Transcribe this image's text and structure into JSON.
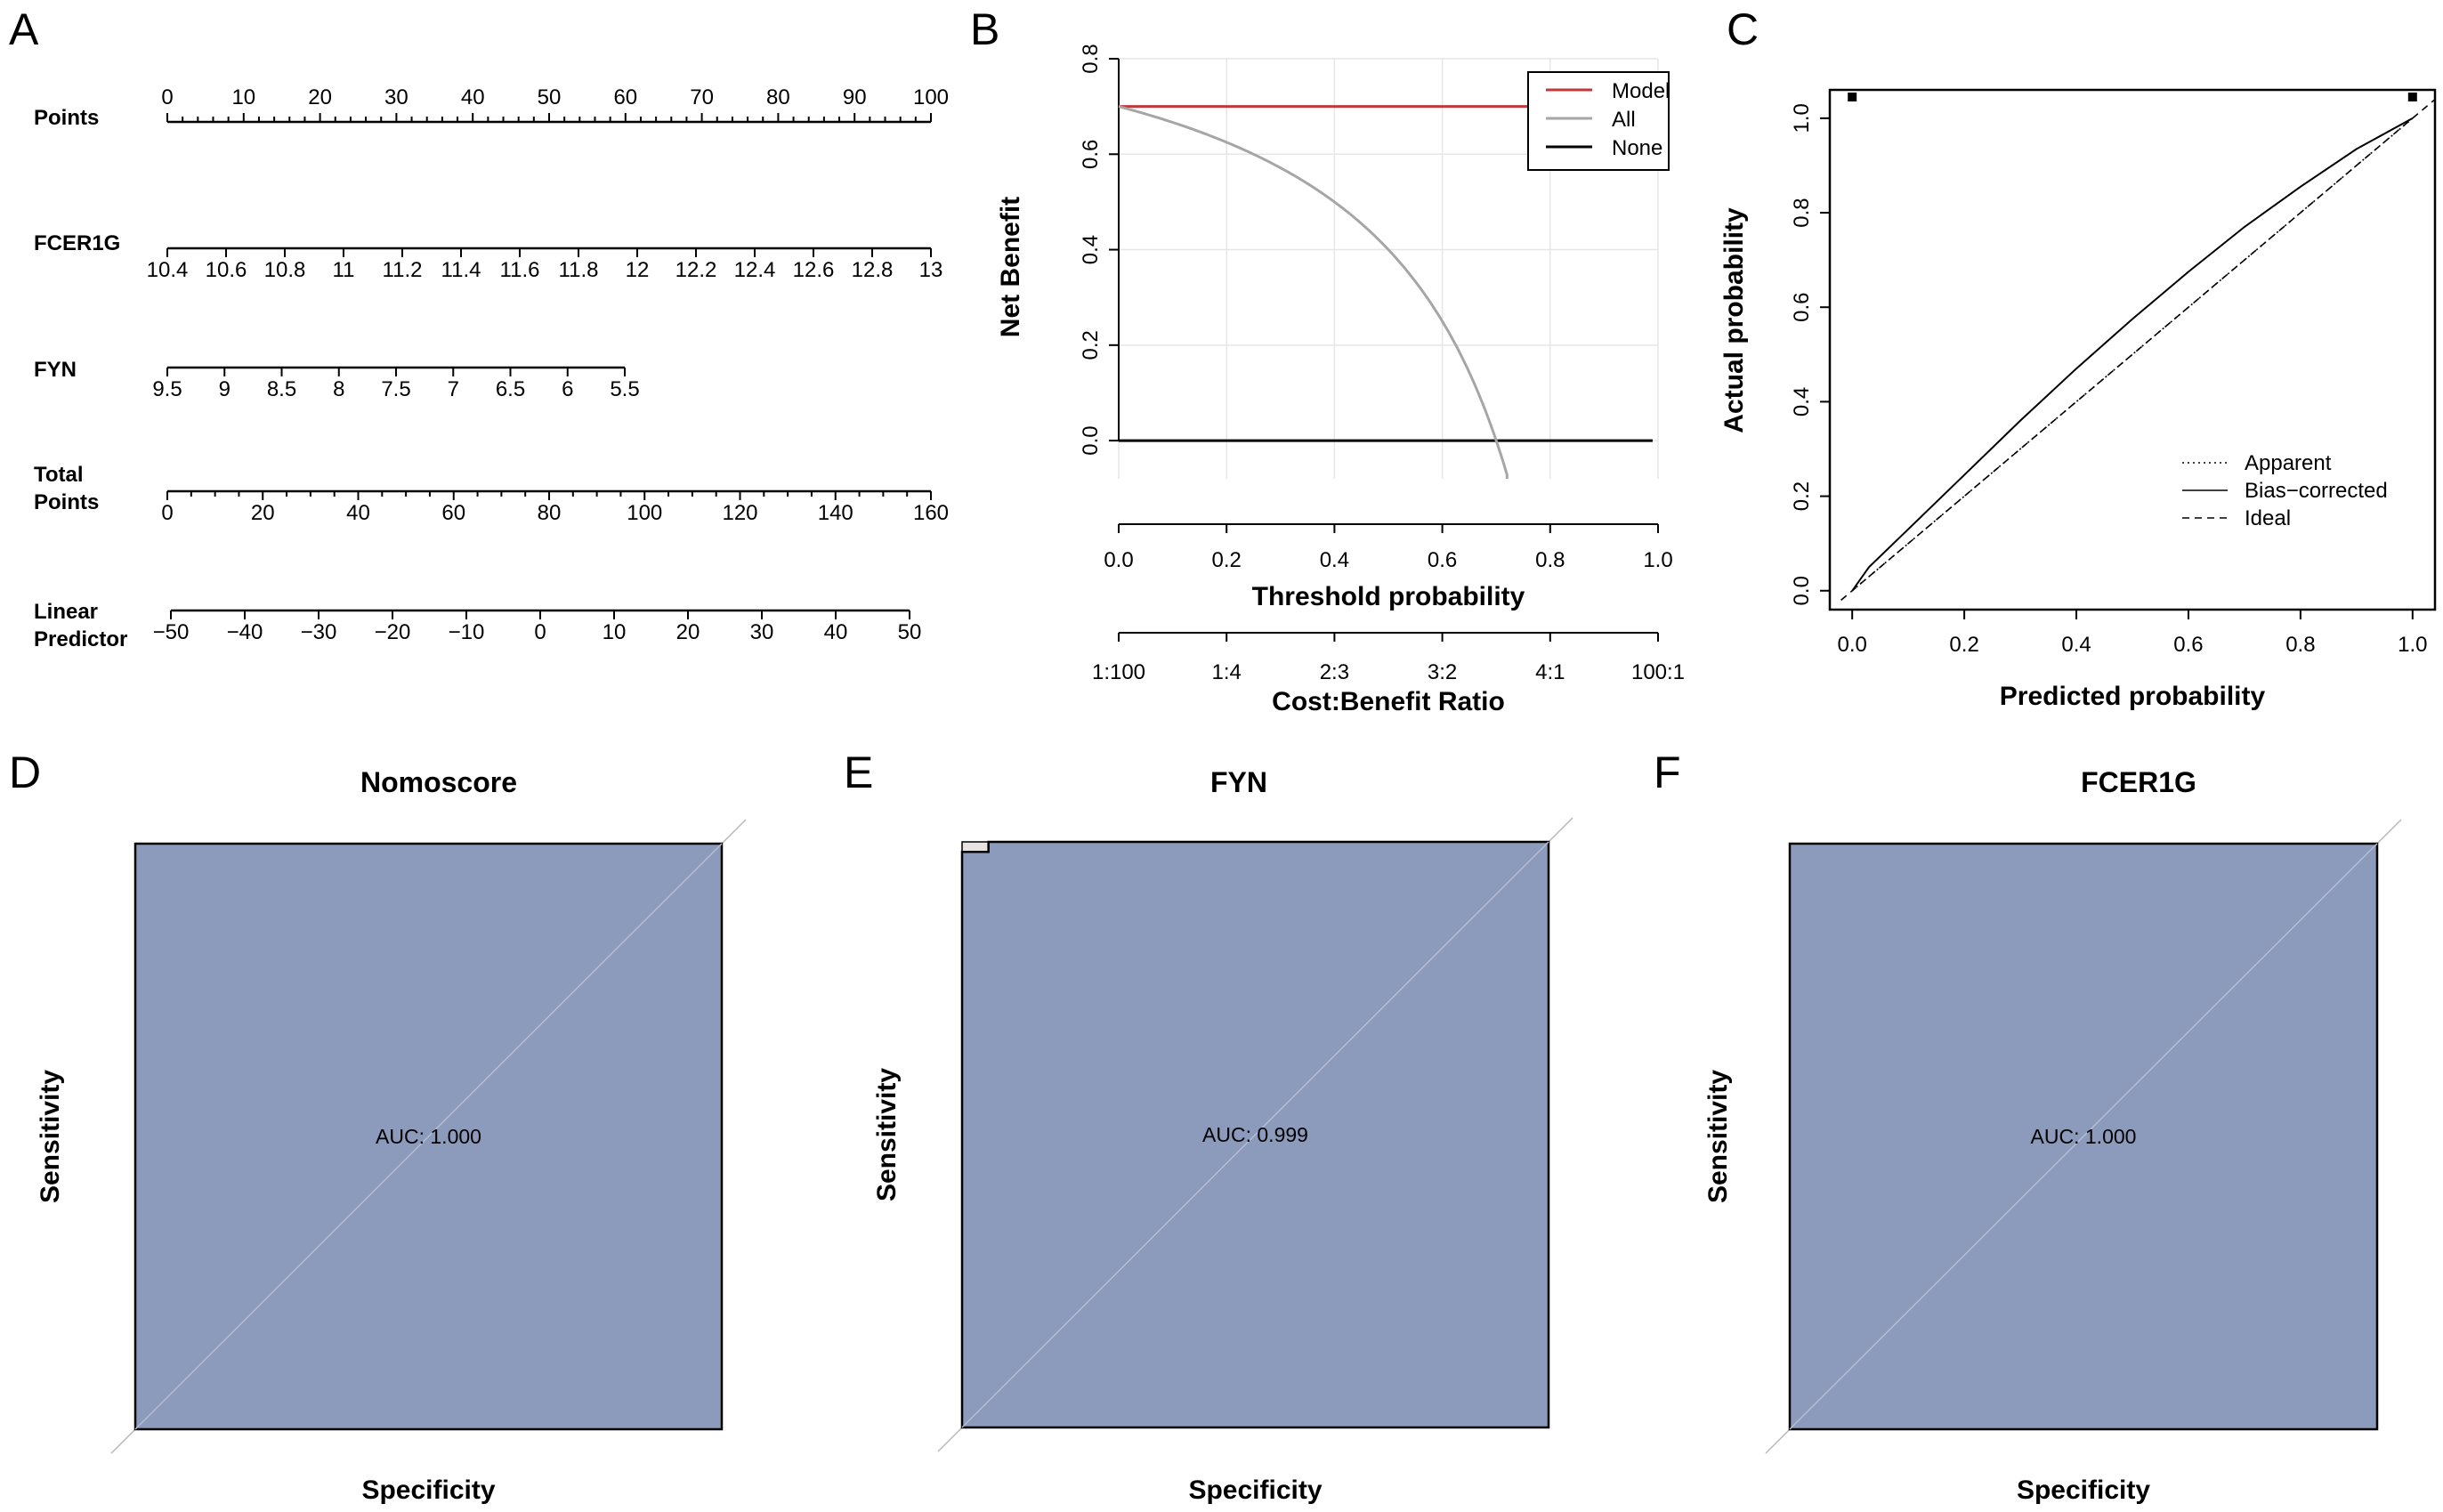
{
  "panels": {
    "a": {
      "label": "A"
    },
    "b": {
      "label": "B"
    },
    "c": {
      "label": "C"
    },
    "d": {
      "label": "D"
    },
    "e": {
      "label": "E"
    },
    "f": {
      "label": "F"
    }
  },
  "colors": {
    "model": "#c4383b",
    "all": "#a6a6a6",
    "none": "#000000",
    "roc_fill": "#8c9abb",
    "roc_line": "#000000",
    "grid": "#e6e6e6"
  },
  "chart_data": [
    {
      "id": "nomogram",
      "type": "nomogram",
      "scales": [
        {
          "name": "Points",
          "label_lines": [
            "Points"
          ],
          "tick_labels": [
            "0",
            "10",
            "20",
            "30",
            "40",
            "50",
            "60",
            "70",
            "80",
            "90",
            "100"
          ],
          "range": [
            0,
            100
          ],
          "labels_above": true,
          "minor_per_major": 5
        },
        {
          "name": "FCER1G",
          "label_lines": [
            "FCER1G"
          ],
          "tick_labels": [
            "10.4",
            "10.6",
            "10.8",
            "11",
            "11.2",
            "11.4",
            "11.6",
            "11.8",
            "12",
            "12.2",
            "12.4",
            "12.6",
            "12.8",
            "13"
          ],
          "range": [
            10.4,
            13
          ],
          "points_range": [
            0,
            100
          ],
          "labels_above": false,
          "minor_per_major": 1
        },
        {
          "name": "FYN",
          "label_lines": [
            "FYN"
          ],
          "tick_labels": [
            "9.5",
            "9",
            "8.5",
            "8",
            "7.5",
            "7",
            "6.5",
            "6",
            "5.5"
          ],
          "range": [
            9.5,
            5.5
          ],
          "points_range": [
            0,
            60
          ],
          "labels_above": false,
          "minor_per_major": 1
        },
        {
          "name": "Total Points",
          "label_lines": [
            "Total",
            "Points"
          ],
          "tick_labels": [
            "0",
            "20",
            "40",
            "60",
            "80",
            "100",
            "120",
            "140",
            "160"
          ],
          "range": [
            0,
            160
          ],
          "labels_above": false,
          "minor_per_major": 4
        },
        {
          "name": "Linear Predictor",
          "label_lines": [
            "Linear",
            "Predictor"
          ],
          "tick_labels": [
            "−50",
            "−40",
            "−30",
            "−20",
            "−10",
            "0",
            "10",
            "20",
            "30",
            "40",
            "50"
          ],
          "range": [
            -50,
            50
          ],
          "labels_above": false,
          "minor_per_major": 1
        }
      ]
    },
    {
      "id": "dca",
      "type": "line",
      "title": "",
      "xlabel": "Threshold probability",
      "ylabel": "Net Benefit",
      "xlim": [
        0,
        1
      ],
      "ylim": [
        -0.08,
        0.8
      ],
      "x_ticks": [
        "0.0",
        "0.2",
        "0.4",
        "0.6",
        "0.8",
        "1.0"
      ],
      "y_ticks": [
        "0.0",
        "0.2",
        "0.4",
        "0.6",
        "0.8"
      ],
      "grid": true,
      "secondary_axis": {
        "label": "Cost:Benefit Ratio",
        "tick_labels": [
          "1:100",
          "1:4",
          "2:3",
          "3:2",
          "4:1",
          "100:1"
        ]
      },
      "legend": {
        "position": "top-right",
        "entries": [
          "Model",
          "All",
          "None"
        ]
      },
      "prevalence": 0.7,
      "series": [
        {
          "name": "Model",
          "x": [
            0,
            0.99
          ],
          "y": [
            0.7,
            0.7
          ]
        },
        {
          "name": "All",
          "x": [
            0,
            0.1,
            0.2,
            0.3,
            0.4,
            0.5,
            0.6,
            0.65,
            0.7,
            0.72
          ],
          "y": [
            0.7,
            0.667,
            0.625,
            0.571,
            0.5,
            0.4,
            0.25,
            0.143,
            0.0,
            -0.071
          ]
        },
        {
          "name": "None",
          "x": [
            0,
            0.99
          ],
          "y": [
            0,
            0
          ]
        }
      ]
    },
    {
      "id": "calibration",
      "type": "line",
      "xlabel": "Predicted probability",
      "ylabel": "Actual probability",
      "xlim": [
        -0.04,
        1.04
      ],
      "ylim": [
        -0.04,
        1.06
      ],
      "x_ticks": [
        "0.0",
        "0.2",
        "0.4",
        "0.6",
        "0.8",
        "1.0"
      ],
      "y_ticks": [
        "0.0",
        "0.2",
        "0.4",
        "0.6",
        "0.8",
        "1.0"
      ],
      "legend": {
        "position": "bottom-right",
        "entries": [
          "Apparent",
          "Bias−corrected",
          "Ideal"
        ]
      },
      "rug_points": [
        0,
        1
      ],
      "series": [
        {
          "name": "Apparent",
          "x": [
            0,
            0.2,
            0.4,
            0.6,
            0.8,
            1.0
          ],
          "y": [
            0,
            0.2,
            0.4,
            0.6,
            0.8,
            1.0
          ]
        },
        {
          "name": "Bias−corrected",
          "x": [
            0,
            0.03,
            0.1,
            0.2,
            0.3,
            0.4,
            0.5,
            0.6,
            0.7,
            0.8,
            0.9,
            1.0
          ],
          "y": [
            0,
            0.05,
            0.13,
            0.245,
            0.36,
            0.47,
            0.575,
            0.675,
            0.77,
            0.855,
            0.935,
            1.0
          ]
        },
        {
          "name": "Ideal",
          "x": [
            -0.02,
            1.04
          ],
          "y": [
            -0.02,
            1.04
          ]
        }
      ]
    },
    {
      "id": "roc_nomoscore",
      "type": "area",
      "title": "Nomoscore",
      "xlabel": "Specificity",
      "ylabel": "Sensitivity",
      "auc_text": "AUC: 1.000",
      "auc": 1.0,
      "corner_notch": 0
    },
    {
      "id": "roc_fyn",
      "type": "area",
      "title": "FYN",
      "xlabel": "Specificity",
      "ylabel": "Sensitivity",
      "auc_text": "AUC: 0.999",
      "auc": 0.999,
      "corner_notch": 0.045
    },
    {
      "id": "roc_fcer1g",
      "type": "area",
      "title": "FCER1G",
      "xlabel": "Specificity",
      "ylabel": "Sensitivity",
      "auc_text": "AUC: 1.000",
      "auc": 1.0,
      "corner_notch": 0
    }
  ]
}
